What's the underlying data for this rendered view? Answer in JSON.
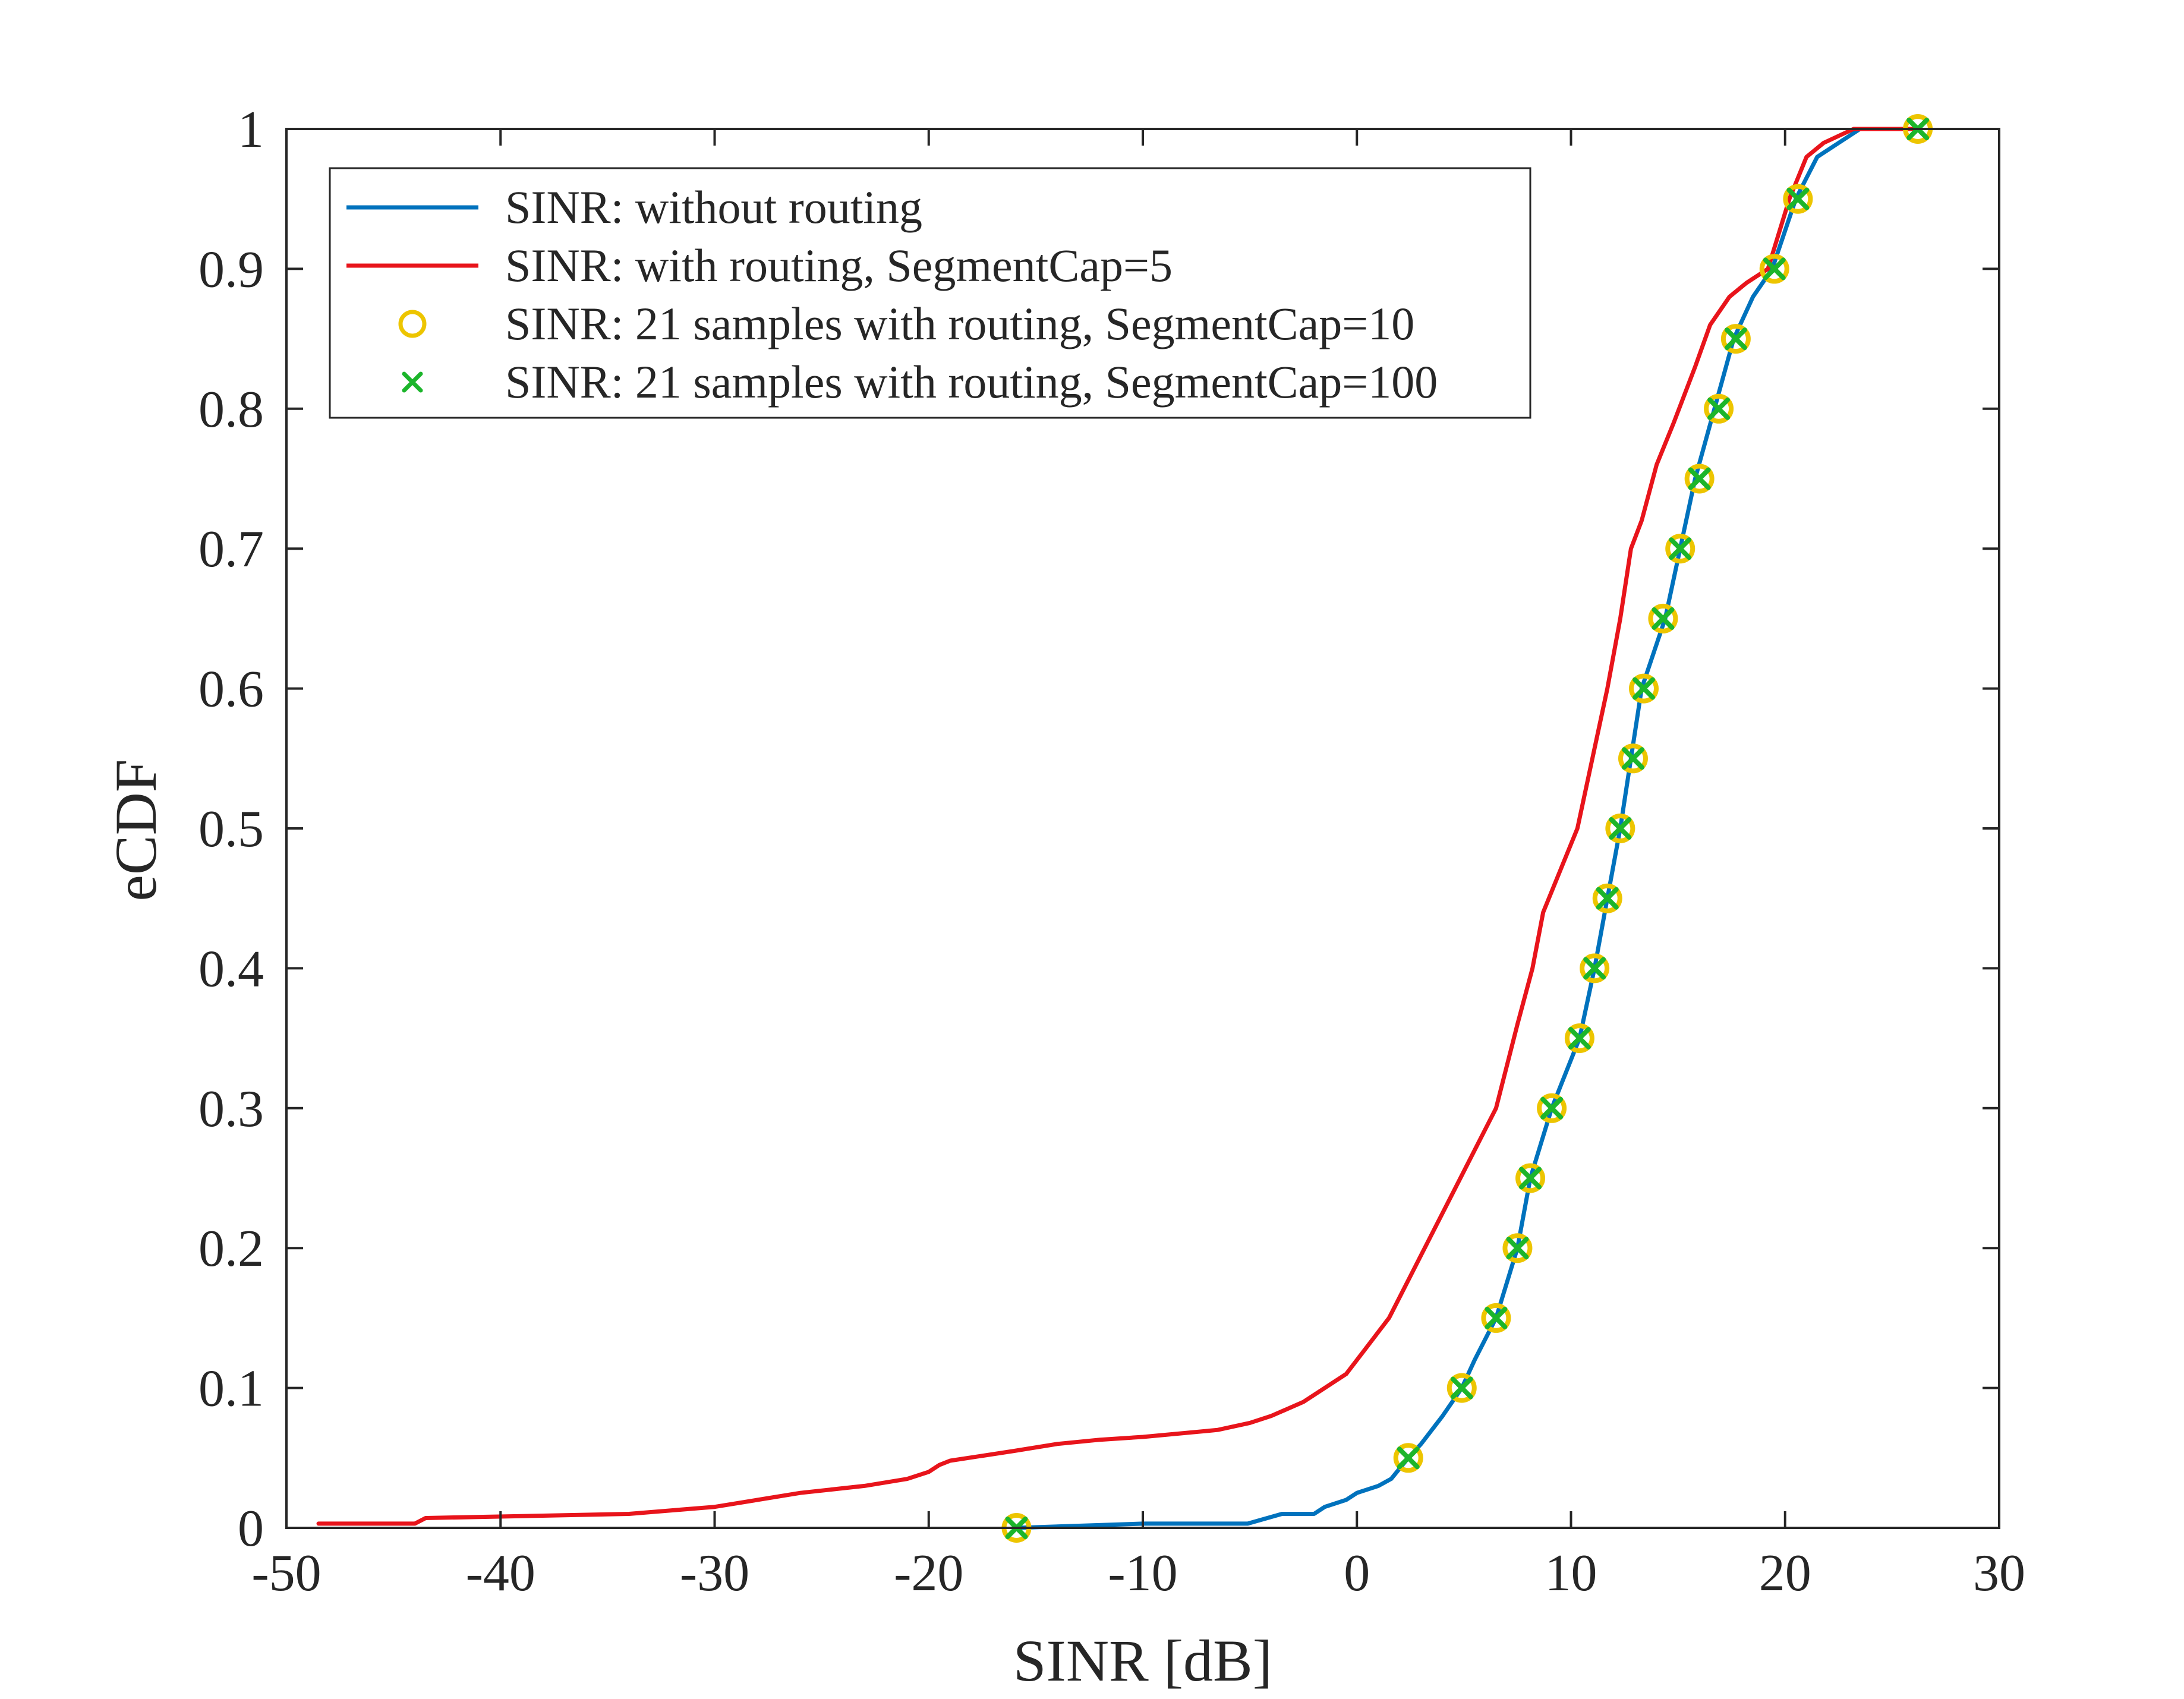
{
  "chart_data": {
    "type": "line",
    "title": "",
    "xlabel": "SINR [dB]",
    "ylabel": "eCDF",
    "xlim": [
      -50,
      30
    ],
    "ylim": [
      0,
      1
    ],
    "xticks": [
      -50,
      -40,
      -30,
      -20,
      -10,
      0,
      10,
      20,
      30
    ],
    "yticks": [
      0,
      0.1,
      0.2,
      0.3,
      0.4,
      0.5,
      0.6,
      0.7,
      0.8,
      0.9,
      1
    ],
    "xtick_labels": [
      "-50",
      "-40",
      "-30",
      "-20",
      "-10",
      "0",
      "10",
      "20",
      "30"
    ],
    "ytick_labels": [
      "0",
      "0.1",
      "0.2",
      "0.3",
      "0.4",
      "0.5",
      "0.6",
      "0.7",
      "0.8",
      "0.9",
      "1"
    ],
    "legend_position": "top-left",
    "series": [
      {
        "name": "SINR: without routing",
        "type": "step-line",
        "color": "#0072BD",
        "x": [
          -15.9,
          -10,
          -5.1,
          -3.5,
          -2,
          -1.5,
          -0.5,
          0,
          1,
          1.6,
          2.4,
          3,
          4,
          4.9,
          5.5,
          6.5,
          7.5,
          8.1,
          9.1,
          10.4,
          11.1,
          11.7,
          12.3,
          12.8,
          13.3,
          14.4,
          15.1,
          15.8,
          16.7,
          17.6,
          18.5,
          19.4,
          20.5,
          21.5,
          22.5,
          23.5,
          26.1
        ],
        "y": [
          0,
          0.003,
          0.003,
          0.01,
          0.01,
          0.015,
          0.02,
          0.025,
          0.03,
          0.035,
          0.05,
          0.06,
          0.08,
          0.1,
          0.12,
          0.15,
          0.2,
          0.25,
          0.3,
          0.35,
          0.4,
          0.45,
          0.5,
          0.55,
          0.6,
          0.65,
          0.7,
          0.75,
          0.8,
          0.85,
          0.88,
          0.9,
          0.95,
          0.98,
          0.99,
          1,
          1
        ]
      },
      {
        "name": "SINR: with routing, SegmentCap=5",
        "type": "step-line",
        "color": "#E8141B",
        "x": [
          -48.5,
          -44,
          -43.5,
          -34,
          -30,
          -26,
          -23,
          -21,
          -20,
          -19.5,
          -19,
          -16,
          -14,
          -12,
          -10,
          -6.5,
          -5,
          -4,
          -2.5,
          -1.5,
          -0.5,
          0.5,
          1,
          1.5,
          2.5,
          3.5,
          4.5,
          5.5,
          6.5,
          7.5,
          8.2,
          8.7,
          9.5,
          10.3,
          11,
          11.7,
          12.3,
          12.8,
          13.3,
          14,
          14.8,
          15.8,
          16.5,
          17.4,
          18.2,
          19.2,
          20.2,
          21,
          21.8,
          23.2,
          26.1
        ],
        "y": [
          0.003,
          0.003,
          0.007,
          0.01,
          0.015,
          0.025,
          0.03,
          0.035,
          0.04,
          0.045,
          0.048,
          0.055,
          0.06,
          0.063,
          0.065,
          0.07,
          0.075,
          0.08,
          0.09,
          0.1,
          0.11,
          0.13,
          0.14,
          0.15,
          0.18,
          0.21,
          0.24,
          0.27,
          0.3,
          0.36,
          0.4,
          0.44,
          0.47,
          0.5,
          0.55,
          0.6,
          0.65,
          0.7,
          0.72,
          0.76,
          0.79,
          0.83,
          0.86,
          0.88,
          0.89,
          0.9,
          0.95,
          0.98,
          0.99,
          1,
          1
        ]
      },
      {
        "name": "SINR: 21 samples with routing, SegmentCap=10",
        "type": "scatter",
        "marker": "circle",
        "color": "#EDC500",
        "x": [
          -15.9,
          2.4,
          4.9,
          6.5,
          7.5,
          8.1,
          9.1,
          10.4,
          11.1,
          11.7,
          12.3,
          12.9,
          13.4,
          14.3,
          15.1,
          16.0,
          16.9,
          17.7,
          19.5,
          20.6,
          26.2
        ],
        "y": [
          0,
          0.05,
          0.1,
          0.15,
          0.2,
          0.25,
          0.3,
          0.35,
          0.4,
          0.45,
          0.5,
          0.55,
          0.6,
          0.65,
          0.7,
          0.75,
          0.8,
          0.85,
          0.9,
          0.95,
          1
        ]
      },
      {
        "name": "SINR: 21 samples with routing, SegmentCap=100",
        "type": "scatter",
        "marker": "x",
        "color": "#1CB52B",
        "x": [
          -15.9,
          2.4,
          4.9,
          6.5,
          7.5,
          8.1,
          9.1,
          10.4,
          11.1,
          11.7,
          12.3,
          12.9,
          13.4,
          14.3,
          15.1,
          16.0,
          16.9,
          17.7,
          19.5,
          20.6,
          26.2
        ],
        "y": [
          0,
          0.05,
          0.1,
          0.15,
          0.2,
          0.25,
          0.3,
          0.35,
          0.4,
          0.45,
          0.5,
          0.55,
          0.6,
          0.65,
          0.7,
          0.75,
          0.8,
          0.85,
          0.9,
          0.95,
          1
        ]
      }
    ]
  }
}
